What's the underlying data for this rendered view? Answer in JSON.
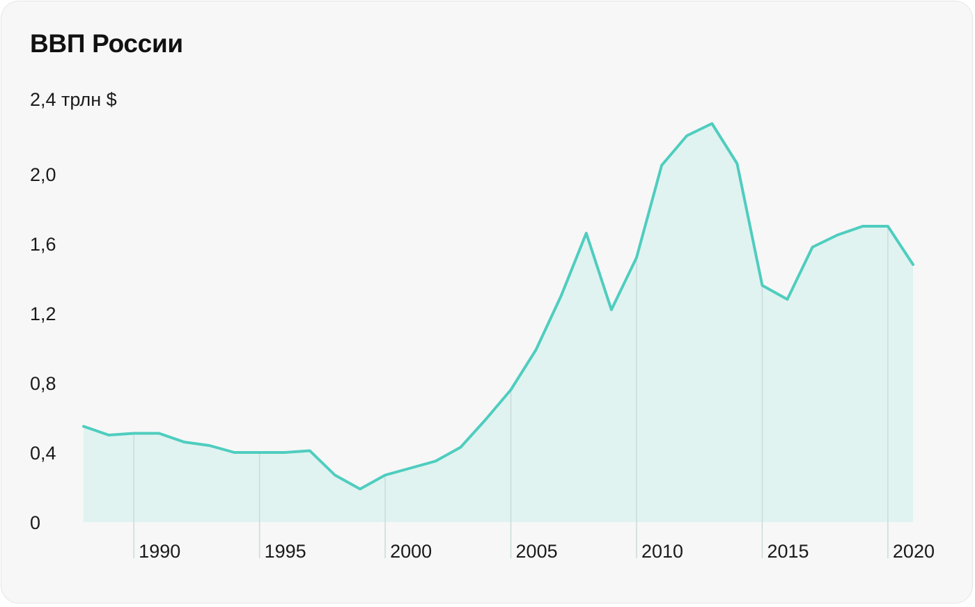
{
  "colors": {
    "line": "#4fcdbf",
    "fill": "#e0f3f0",
    "grid": "#c9dcd9",
    "background": "#f7f7f7",
    "text": "#1a1a1a"
  },
  "chart_data": {
    "type": "area",
    "title": "ВВП России",
    "unit_label": "2,4 трлн $",
    "xlabel": "",
    "ylabel": "",
    "x_ticks": [
      {
        "value": 1990,
        "label": "1990"
      },
      {
        "value": 1995,
        "label": "1995"
      },
      {
        "value": 2000,
        "label": "2000"
      },
      {
        "value": 2005,
        "label": "2005"
      },
      {
        "value": 2010,
        "label": "2010"
      },
      {
        "value": 2015,
        "label": "2015"
      },
      {
        "value": 2020,
        "label": "2020"
      }
    ],
    "y_ticks": [
      {
        "value": 0,
        "label": "0"
      },
      {
        "value": 0.4,
        "label": "0,4"
      },
      {
        "value": 0.8,
        "label": "0,8"
      },
      {
        "value": 1.2,
        "label": "1,2"
      },
      {
        "value": 1.6,
        "label": "1,6"
      },
      {
        "value": 2.0,
        "label": "2,0"
      }
    ],
    "xlim": [
      1988,
      2021
    ],
    "ylim": [
      0,
      2.4
    ],
    "grid": "vertical lines at x ticks",
    "series": [
      {
        "x": [
          1988,
          1989,
          1990,
          1991,
          1992,
          1993,
          1994,
          1995,
          1996,
          1997,
          1998,
          1999,
          2000,
          2001,
          2002,
          2003,
          2004,
          2005,
          2006,
          2007,
          2008,
          2009,
          2010,
          2011,
          2012,
          2013,
          2014,
          2015,
          2016,
          2017,
          2018,
          2019,
          2020,
          2021
        ],
        "y": [
          0.55,
          0.5,
          0.51,
          0.51,
          0.46,
          0.44,
          0.4,
          0.4,
          0.4,
          0.41,
          0.27,
          0.19,
          0.27,
          0.31,
          0.35,
          0.43,
          0.59,
          0.76,
          0.99,
          1.3,
          1.66,
          1.22,
          1.52,
          2.05,
          2.22,
          2.29,
          2.06,
          1.36,
          1.28,
          1.58,
          1.65,
          1.7,
          1.7,
          1.48
        ]
      }
    ]
  }
}
